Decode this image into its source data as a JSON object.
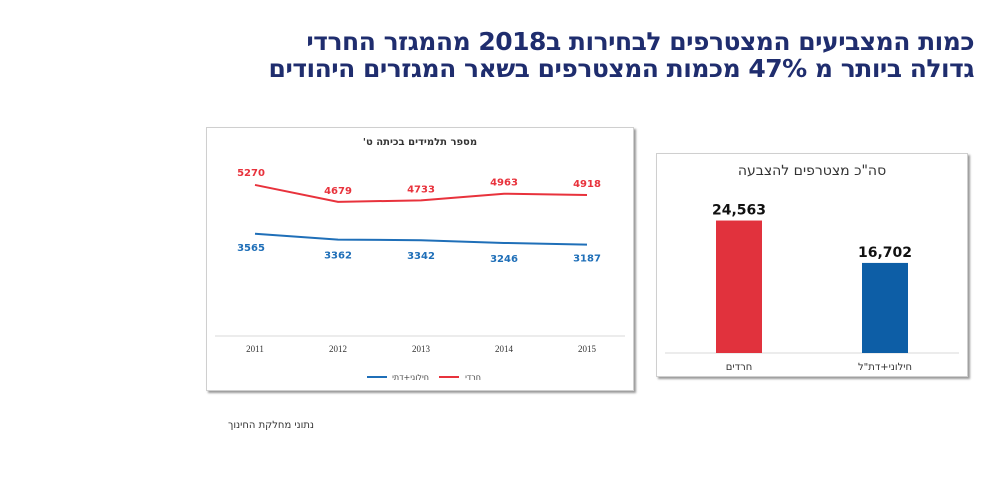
{
  "headline": {
    "line1": "כמות המצביעים המצטרפים לבחירות ב2018 מהמגזר החרדי",
    "line2": "גדולה ביותר מ 47% מכמות המצטרפים בשאר המגזרים היהודים"
  },
  "footnote": "נתוני מחלקת החינוך",
  "chart_data": [
    {
      "type": "line",
      "title": "מספר תלמידים בכיתה ט'",
      "categories": [
        "2011",
        "2012",
        "2013",
        "2014",
        "2015"
      ],
      "ylim": [
        0,
        6000
      ],
      "grid": false,
      "legend_position": "bottom",
      "series": [
        {
          "name": "חילוני+דתי",
          "color": "#1f6fb8",
          "values": [
            3565,
            3362,
            3342,
            3246,
            3187
          ]
        },
        {
          "name": "חרדי",
          "color": "#e8323c",
          "values": [
            5270,
            4679,
            4733,
            4963,
            4918
          ]
        }
      ]
    },
    {
      "type": "bar",
      "title": "סה\"כ מצטרפים להצבעה",
      "categories": [
        "חרדים",
        "חילוני+דת\"ל"
      ],
      "values": [
        24563,
        16702
      ],
      "value_labels": [
        "24,563",
        "16,702"
      ],
      "colors": [
        "#e1323d",
        "#0d5ea6"
      ],
      "ylim": [
        0,
        28000
      ]
    }
  ]
}
